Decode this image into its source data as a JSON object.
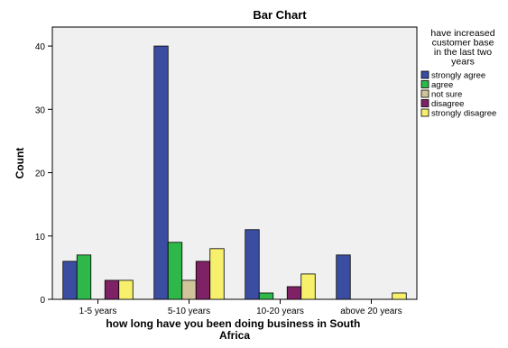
{
  "chart_data": {
    "type": "bar",
    "title": "Bar Chart",
    "xlabel": "how long have you been doing business in South Africa",
    "ylabel": "Count",
    "categories": [
      "1-5 years",
      "5-10 years",
      "10-20 years",
      "above 20 years"
    ],
    "ylim": [
      0,
      43
    ],
    "yticks": [
      0,
      10,
      20,
      30,
      40
    ],
    "grid": false,
    "legend": {
      "title": "have increased customer base in the last two years",
      "placement": "right"
    },
    "series": [
      {
        "name": "strongly agree",
        "color": "#3b4da0",
        "values": [
          6,
          40,
          11,
          7
        ]
      },
      {
        "name": "agree",
        "color": "#2eb84a",
        "values": [
          7,
          9,
          1,
          0
        ]
      },
      {
        "name": "not sure",
        "color": "#cfc49a",
        "values": [
          0,
          3,
          0,
          0
        ]
      },
      {
        "name": "disagree",
        "color": "#7e2165",
        "values": [
          3,
          6,
          2,
          0
        ]
      },
      {
        "name": "strongly disagree",
        "color": "#f7f06c",
        "values": [
          3,
          8,
          4,
          1
        ]
      }
    ]
  }
}
